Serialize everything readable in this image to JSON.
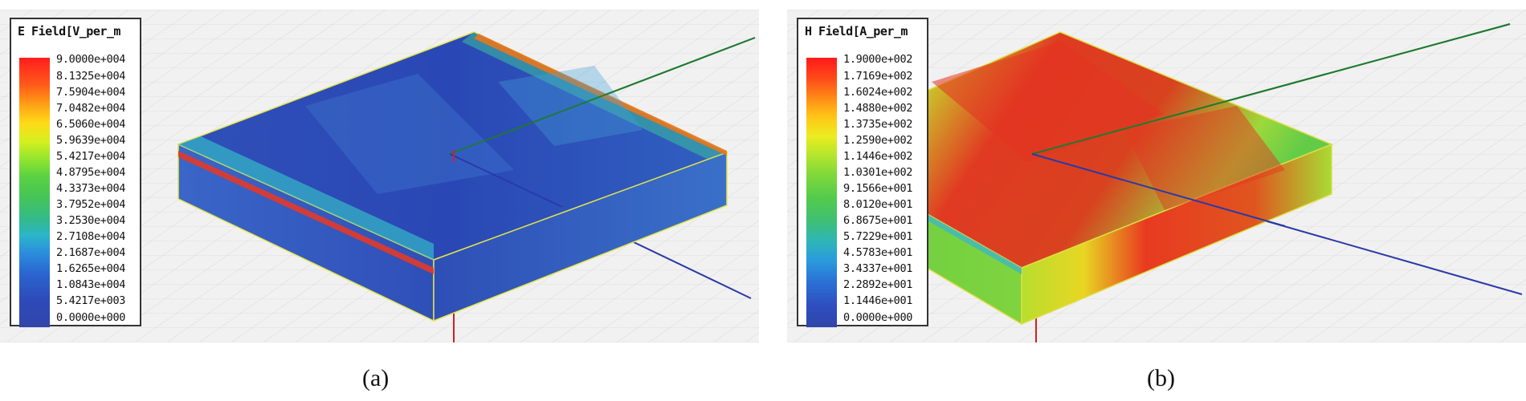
{
  "figures": [
    {
      "id": "a",
      "caption": "(a)",
      "legend": {
        "title": "E Field[V_per_m",
        "ticks": [
          "9.0000e+004",
          "8.1325e+004",
          "7.5904e+004",
          "7.0482e+004",
          "6.5060e+004",
          "5.9639e+004",
          "5.4217e+004",
          "4.8795e+004",
          "4.3373e+004",
          "3.7952e+004",
          "3.2530e+004",
          "2.7108e+004",
          "2.1687e+004",
          "1.6265e+004",
          "1.0843e+004",
          "5.4217e+003",
          "0.0000e+000"
        ]
      },
      "colors": {
        "low": "#3045aa",
        "mid": "#45c459",
        "high": "#ff1d1d"
      }
    },
    {
      "id": "b",
      "caption": "(b)",
      "legend": {
        "title": "H Field[A_per_m",
        "ticks": [
          "1.9000e+002",
          "1.7169e+002",
          "1.6024e+002",
          "1.4880e+002",
          "1.3735e+002",
          "1.2590e+002",
          "1.1446e+002",
          "1.0301e+002",
          "9.1566e+001",
          "8.0120e+001",
          "6.8675e+001",
          "5.7229e+001",
          "4.5783e+001",
          "3.4337e+001",
          "2.2892e+001",
          "1.1446e+001",
          "0.0000e+000"
        ]
      },
      "colors": {
        "low": "#3045aa",
        "mid": "#54cb4c",
        "high": "#ff1a1a"
      }
    }
  ]
}
